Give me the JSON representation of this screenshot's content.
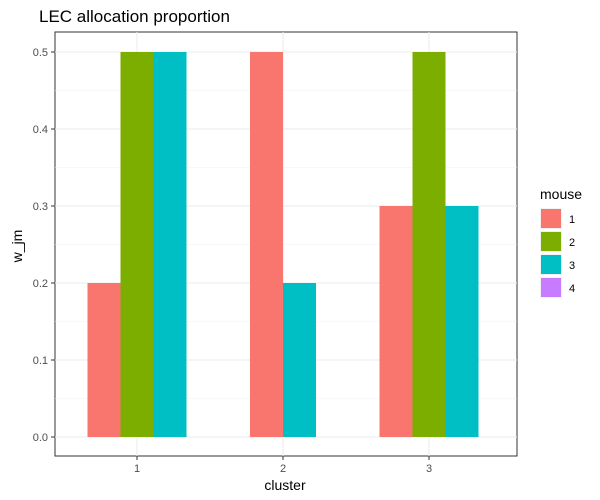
{
  "chart_data": {
    "type": "bar",
    "title": "LEC allocation proportion",
    "xlabel": "cluster",
    "ylabel": "w_jm",
    "categories": [
      "1",
      "2",
      "3"
    ],
    "ylim": [
      0,
      0.5
    ],
    "yticks": [
      "0.0",
      "0.1",
      "0.2",
      "0.3",
      "0.4",
      "0.5"
    ],
    "grid": true,
    "legend": {
      "title": "mouse",
      "placement": "right",
      "entries": [
        "1",
        "2",
        "3",
        "4"
      ]
    },
    "series": [
      {
        "name": "1",
        "color": "#F8766D",
        "values": [
          0.2,
          0.5,
          0.3
        ]
      },
      {
        "name": "2",
        "color": "#7CAE00",
        "values": [
          0.5,
          0.0,
          0.5
        ]
      },
      {
        "name": "3",
        "color": "#00BFC4",
        "values": [
          0.5,
          0.2,
          0.3
        ]
      },
      {
        "name": "4",
        "color": "#C77CFF",
        "values": [
          0.0,
          0.0,
          0.0
        ]
      }
    ]
  }
}
